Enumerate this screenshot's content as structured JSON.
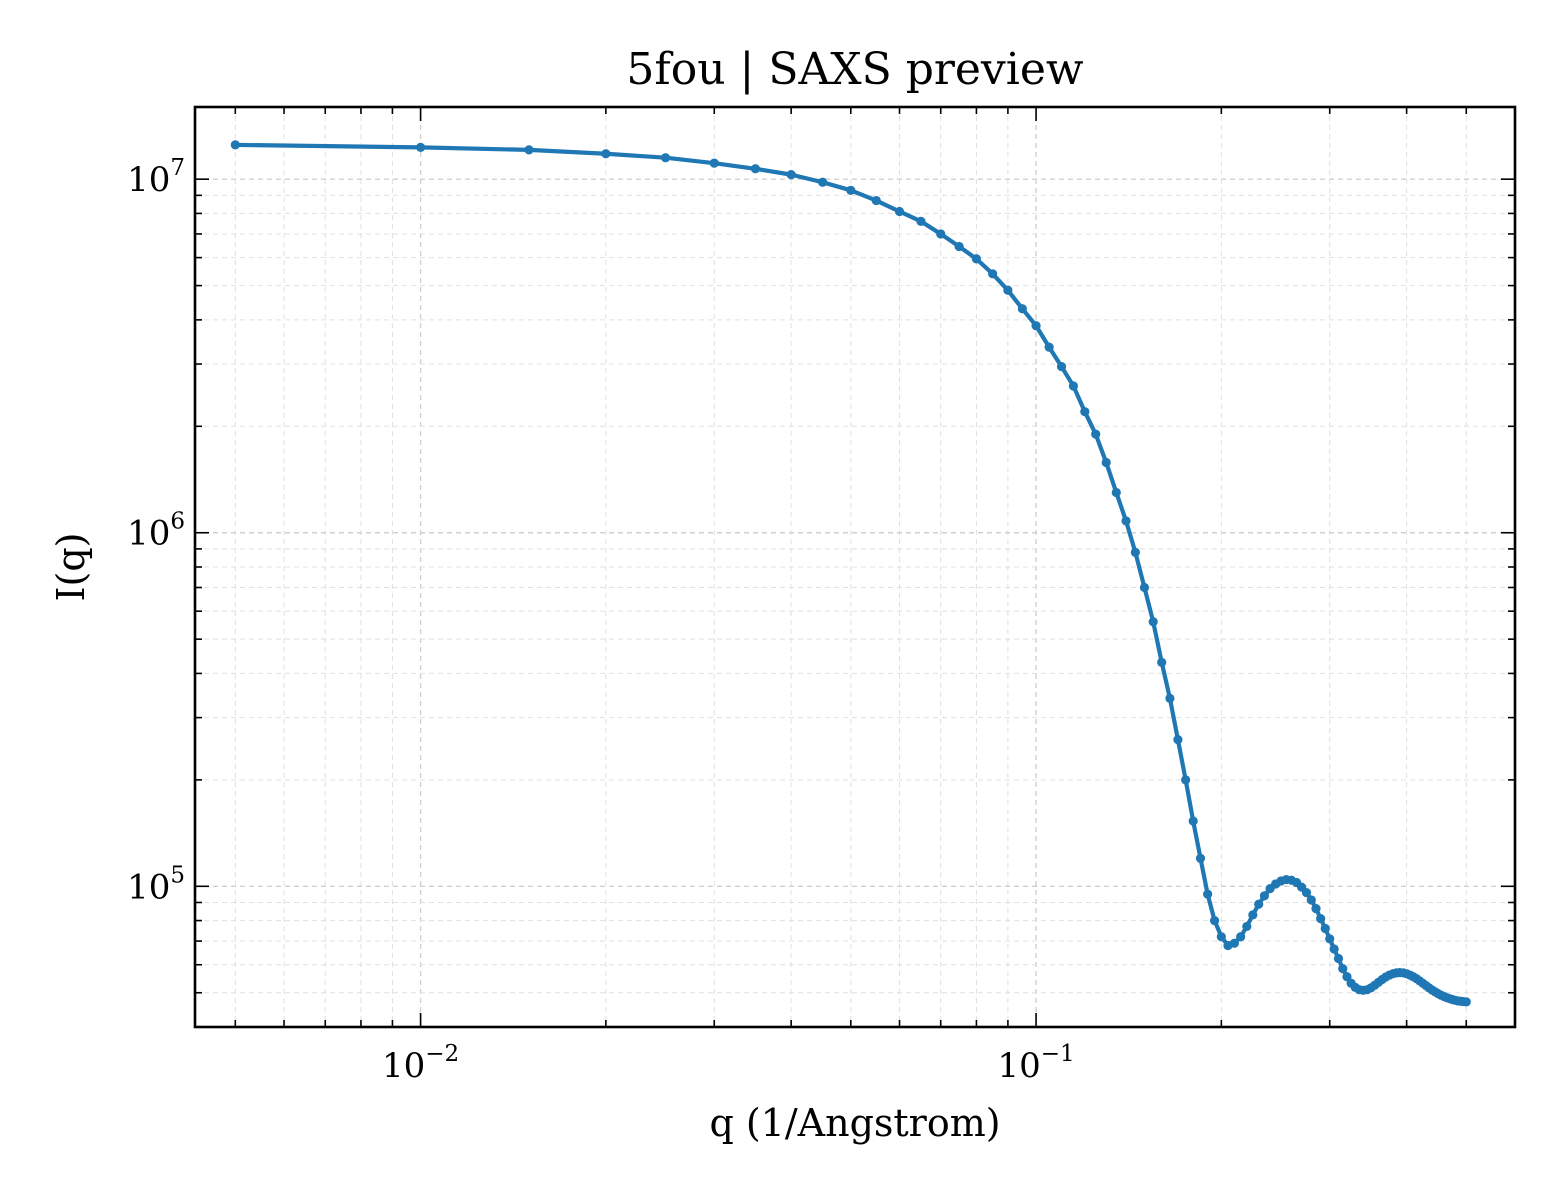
{
  "chart_data": {
    "type": "line",
    "title": "5fou | SAXS preview",
    "xlabel": "q (1/Angstrom)",
    "ylabel": "I(q)",
    "xscale": "log",
    "yscale": "log",
    "xlim": [
      0.0043,
      0.6
    ],
    "ylim": [
      40000,
      16000000
    ],
    "grid": true,
    "legend": "none",
    "x_ticks": [
      {
        "base": "10",
        "exp": "−2",
        "value": 0.01
      },
      {
        "base": "10",
        "exp": "−1",
        "value": 0.1
      }
    ],
    "y_ticks": [
      {
        "base": "10",
        "exp": "5",
        "value": 100000
      },
      {
        "base": "10",
        "exp": "6",
        "value": 1000000
      },
      {
        "base": "10",
        "exp": "7",
        "value": 10000000
      }
    ],
    "color": "#1f77b4",
    "series": [
      {
        "x": [
          0.005,
          0.01,
          0.015,
          0.02,
          0.025,
          0.03,
          0.035,
          0.04,
          0.045,
          0.05,
          0.055,
          0.06,
          0.065,
          0.07,
          0.075,
          0.08,
          0.085,
          0.09,
          0.095,
          0.1,
          0.105,
          0.11,
          0.115,
          0.12,
          0.125,
          0.13,
          0.135,
          0.14,
          0.145,
          0.15,
          0.155,
          0.16,
          0.165,
          0.17,
          0.175,
          0.18,
          0.185,
          0.19,
          0.195,
          0.2,
          0.205,
          0.21,
          0.215,
          0.22,
          0.225,
          0.23,
          0.235,
          0.24,
          0.245,
          0.25,
          0.255,
          0.26,
          0.265,
          0.27,
          0.275,
          0.28,
          0.285,
          0.29,
          0.295,
          0.3,
          0.305,
          0.31,
          0.315,
          0.32,
          0.325,
          0.33,
          0.335,
          0.34,
          0.345,
          0.35,
          0.355,
          0.36,
          0.365,
          0.37,
          0.375,
          0.38,
          0.385,
          0.39,
          0.395,
          0.4,
          0.405,
          0.41,
          0.415,
          0.42,
          0.425,
          0.43,
          0.435,
          0.44,
          0.445,
          0.45,
          0.455,
          0.46,
          0.465,
          0.47,
          0.475,
          0.48,
          0.485,
          0.49,
          0.495,
          0.5
        ],
        "y": [
          12500000,
          12300000,
          12100000,
          11800000,
          11500000,
          11100000,
          10700000,
          10300000,
          9800000,
          9300000,
          8700000,
          8100000,
          7600000,
          7000000,
          6450000,
          5950000,
          5400000,
          4850000,
          4300000,
          3850000,
          3350000,
          2950000,
          2600000,
          2200000,
          1900000,
          1580000,
          1300000,
          1080000,
          880000,
          700000,
          560000,
          430000,
          340000,
          260000,
          200000,
          153000,
          120000,
          95000,
          80000,
          72000,
          68000,
          69000,
          72000,
          77000,
          83000,
          89000,
          94000,
          98500,
          101500,
          103500,
          104500,
          104000,
          102500,
          99500,
          96000,
          91500,
          86500,
          81000,
          76000,
          71000,
          66500,
          62500,
          58500,
          55500,
          53200,
          51800,
          51000,
          50800,
          51000,
          51600,
          52500,
          53500,
          54500,
          55400,
          56100,
          56600,
          56900,
          57000,
          56900,
          56600,
          56100,
          55500,
          54800,
          54000,
          53200,
          52400,
          51600,
          50900,
          50300,
          49700,
          49200,
          48800,
          48400,
          48100,
          47800,
          47600,
          47400,
          47300,
          47200,
          47100
        ]
      }
    ]
  }
}
